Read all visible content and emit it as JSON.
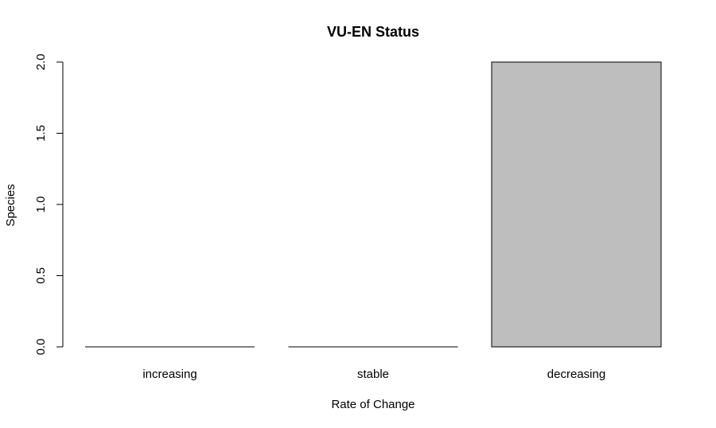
{
  "chart_data": {
    "type": "bar",
    "title": "VU-EN Status",
    "xlabel": "Rate of Change",
    "ylabel": "Species",
    "categories": [
      "increasing",
      "stable",
      "decreasing"
    ],
    "values": [
      0,
      0,
      2
    ],
    "ylim": [
      0,
      2
    ],
    "yticks": [
      0.0,
      0.5,
      1.0,
      1.5,
      2.0
    ],
    "ytick_labels": [
      "0.0",
      "0.5",
      "1.0",
      "1.5",
      "2.0"
    ],
    "grid": false,
    "bar_color": "#bebebe",
    "bar_border_color": "#000000"
  }
}
